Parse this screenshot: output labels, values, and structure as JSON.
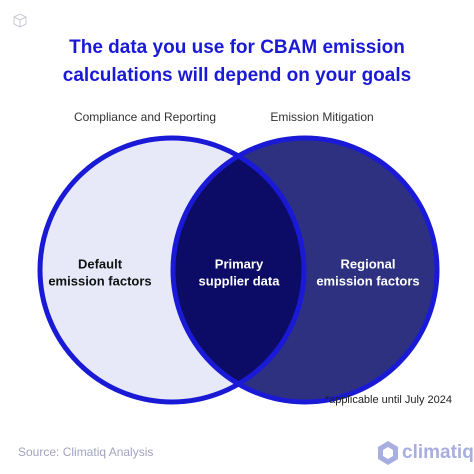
{
  "title": {
    "lines": [
      "The data you use for CBAM emission",
      "calculations will depend on your goals"
    ]
  },
  "sets": [
    {
      "label": "Compliance and Reporting"
    },
    {
      "label": "Emission Mitigation"
    }
  ],
  "regions": [
    {
      "lines": [
        "Default",
        "emission factors"
      ]
    },
    {
      "lines": [
        "Primary",
        "supplier data"
      ]
    },
    {
      "lines": [
        "Regional",
        "emission factors"
      ]
    }
  ],
  "footnote": "*applicable until July 2024",
  "source": "Source: Climatiq Analysis",
  "logo": "climatiq"
}
